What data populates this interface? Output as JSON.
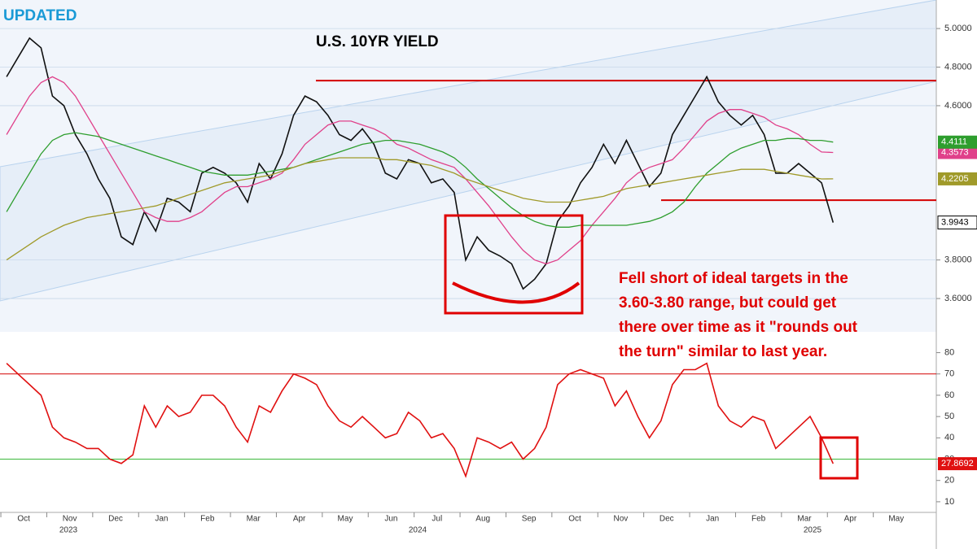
{
  "chart_data": [
    {
      "type": "line",
      "title": "U.S. 10YR YIELD",
      "badge": "UPDATED",
      "categories": [
        "Oct",
        null,
        null,
        null,
        "Nov",
        null,
        null,
        null,
        "Dec",
        null,
        null,
        null,
        "Jan",
        null,
        null,
        null,
        "Feb",
        null,
        null,
        null,
        "Mar",
        null,
        null,
        null,
        "Apr",
        null,
        null,
        null,
        "May",
        null,
        null,
        null,
        "Jun",
        null,
        null,
        null,
        "Jul",
        null,
        null,
        null,
        "Aug",
        null,
        null,
        null,
        "Sep",
        null,
        null,
        null,
        "Oct",
        null,
        null,
        null,
        "Nov",
        null,
        null,
        null,
        "Dec",
        null,
        null,
        null,
        "Jan",
        null,
        null,
        null,
        "Feb",
        null,
        null,
        null,
        "Mar",
        null,
        null,
        null,
        "Apr",
        null,
        null,
        null,
        "May",
        null,
        null,
        null
      ],
      "year_labels": [
        "2023",
        "2024",
        "2025"
      ],
      "series": [
        {
          "color": "#111111",
          "values": [
            4.75,
            4.85,
            4.95,
            4.9,
            4.65,
            4.6,
            4.45,
            4.35,
            4.22,
            4.12,
            3.92,
            3.88,
            4.05,
            3.95,
            4.12,
            4.1,
            4.05,
            4.25,
            4.28,
            4.25,
            4.2,
            4.1,
            4.3,
            4.22,
            4.35,
            4.55,
            4.65,
            4.62,
            4.55,
            4.45,
            4.42,
            4.48,
            4.4,
            4.25,
            4.22,
            4.32,
            4.3,
            4.2,
            4.22,
            4.15,
            3.8,
            3.92,
            3.85,
            3.82,
            3.78,
            3.65,
            3.7,
            3.78,
            4.0,
            4.08,
            4.2,
            4.28,
            4.4,
            4.3,
            4.42,
            4.3,
            4.18,
            4.25,
            4.45,
            4.55,
            4.65,
            4.75,
            4.62,
            4.55,
            4.5,
            4.55,
            4.45,
            4.25,
            4.25,
            4.3,
            4.25,
            4.2,
            3.9943,
            null,
            null,
            null,
            null,
            null,
            null,
            null
          ]
        },
        {
          "color": "#e0408a",
          "values": [
            4.45,
            4.55,
            4.65,
            4.72,
            4.75,
            4.72,
            4.65,
            4.55,
            4.45,
            4.35,
            4.25,
            4.15,
            4.05,
            4.02,
            4.0,
            4.0,
            4.02,
            4.05,
            4.1,
            4.15,
            4.18,
            4.18,
            4.2,
            4.22,
            4.25,
            4.32,
            4.4,
            4.45,
            4.5,
            4.52,
            4.52,
            4.5,
            4.48,
            4.45,
            4.4,
            4.38,
            4.35,
            4.32,
            4.3,
            4.28,
            4.22,
            4.15,
            4.08,
            4.0,
            3.92,
            3.85,
            3.8,
            3.78,
            3.8,
            3.85,
            3.9,
            3.98,
            4.05,
            4.12,
            4.2,
            4.25,
            4.28,
            4.3,
            4.32,
            4.38,
            4.45,
            4.52,
            4.56,
            4.58,
            4.58,
            4.56,
            4.54,
            4.5,
            4.48,
            4.45,
            4.4,
            4.36,
            4.3573,
            null,
            null,
            null,
            null,
            null,
            null,
            null
          ]
        },
        {
          "color": "#2e9e2e",
          "values": [
            4.05,
            4.15,
            4.25,
            4.35,
            4.42,
            4.45,
            4.46,
            4.45,
            4.44,
            4.42,
            4.4,
            4.38,
            4.36,
            4.34,
            4.32,
            4.3,
            4.28,
            4.26,
            4.25,
            4.24,
            4.24,
            4.24,
            4.25,
            4.26,
            4.27,
            4.28,
            4.3,
            4.32,
            4.34,
            4.36,
            4.38,
            4.4,
            4.41,
            4.42,
            4.42,
            4.41,
            4.4,
            4.38,
            4.36,
            4.33,
            4.28,
            4.22,
            4.17,
            4.12,
            4.07,
            4.03,
            4.0,
            3.98,
            3.97,
            3.97,
            3.98,
            3.98,
            3.98,
            3.98,
            3.98,
            3.99,
            4.0,
            4.02,
            4.05,
            4.1,
            4.18,
            4.25,
            4.3,
            4.35,
            4.38,
            4.4,
            4.42,
            4.42,
            4.43,
            4.43,
            4.42,
            4.42,
            4.4111,
            null,
            null,
            null,
            null,
            null,
            null,
            null
          ]
        },
        {
          "color": "#a09a2a",
          "values": [
            3.8,
            3.84,
            3.88,
            3.92,
            3.95,
            3.98,
            4.0,
            4.02,
            4.03,
            4.04,
            4.05,
            4.06,
            4.07,
            4.08,
            4.1,
            4.12,
            4.14,
            4.16,
            4.18,
            4.2,
            4.21,
            4.22,
            4.23,
            4.24,
            4.26,
            4.28,
            4.3,
            4.31,
            4.32,
            4.33,
            4.33,
            4.33,
            4.33,
            4.32,
            4.32,
            4.31,
            4.3,
            4.29,
            4.27,
            4.25,
            4.22,
            4.2,
            4.18,
            4.16,
            4.14,
            4.12,
            4.11,
            4.1,
            4.1,
            4.1,
            4.11,
            4.12,
            4.13,
            4.15,
            4.17,
            4.18,
            4.19,
            4.2,
            4.21,
            4.22,
            4.23,
            4.24,
            4.25,
            4.26,
            4.27,
            4.27,
            4.27,
            4.26,
            4.25,
            4.24,
            4.23,
            4.22,
            4.2205,
            null,
            null,
            null,
            null,
            null,
            null,
            null
          ]
        }
      ],
      "hlines": [
        {
          "value": 4.73,
          "color": "#d40000"
        },
        {
          "value": 4.11,
          "color": "#d40000"
        }
      ],
      "ylim": [
        3.44,
        5.148
      ],
      "yticks": [
        {
          "value": 5.0,
          "label": "5.0000"
        },
        {
          "value": 4.8,
          "label": "4.8000"
        },
        {
          "value": 4.6,
          "label": "4.6000"
        },
        {
          "value": 3.8,
          "label": "3.8000"
        },
        {
          "value": 3.6,
          "label": "3.6000"
        }
      ],
      "grid": true,
      "annotation": [
        "Fell short of ideal targets in the",
        "3.60-3.80 range, but could get",
        "there over time as it \"rounds out",
        "the turn\" similar to last year."
      ]
    },
    {
      "type": "line",
      "series": [
        {
          "color": "#e01010",
          "values": [
            75,
            70,
            65,
            60,
            45,
            40,
            38,
            35,
            35,
            30,
            28,
            32,
            55,
            45,
            55,
            50,
            52,
            60,
            60,
            55,
            45,
            38,
            55,
            52,
            62,
            70,
            68,
            65,
            55,
            48,
            45,
            50,
            45,
            40,
            42,
            52,
            48,
            40,
            42,
            35,
            22,
            40,
            38,
            35,
            38,
            30,
            35,
            45,
            65,
            70,
            72,
            70,
            68,
            55,
            62,
            50,
            40,
            48,
            65,
            72,
            72,
            75,
            55,
            48,
            45,
            50,
            48,
            35,
            40,
            45,
            50,
            40,
            27.8692,
            null,
            null,
            null,
            null,
            null,
            null,
            null
          ]
        }
      ],
      "hlines": [
        {
          "value": 70,
          "color": "#d40000"
        },
        {
          "value": 30,
          "color": "#3cb83c"
        }
      ],
      "ylim": [
        5,
        89
      ],
      "yticks": [
        10,
        20,
        30,
        40,
        50,
        60,
        70,
        80
      ]
    }
  ]
}
